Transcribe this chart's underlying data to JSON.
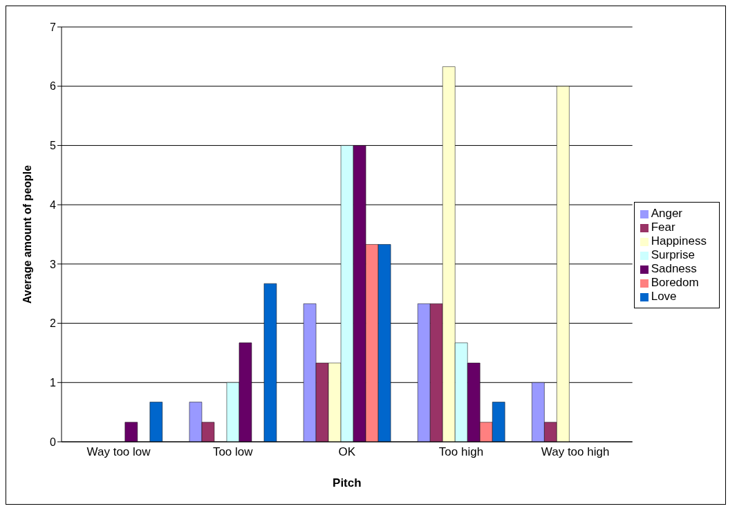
{
  "chart_data": {
    "type": "bar",
    "xlabel": "Pitch",
    "ylabel": "Average amount of people",
    "categories": [
      "Way too low",
      "Too low",
      "OK",
      "Too high",
      "Way too high"
    ],
    "series": [
      {
        "name": "Anger",
        "color": "#9999ff",
        "values": [
          0,
          0.67,
          2.33,
          2.33,
          1
        ]
      },
      {
        "name": "Fear",
        "color": "#993366",
        "values": [
          0,
          0.33,
          1.33,
          2.33,
          0.33
        ]
      },
      {
        "name": "Happiness",
        "color": "#ffffcc",
        "values": [
          0,
          0,
          1.33,
          6.33,
          6
        ]
      },
      {
        "name": "Surprise",
        "color": "#ccffff",
        "values": [
          0,
          1,
          5,
          1.67,
          0
        ]
      },
      {
        "name": "Sadness",
        "color": "#660066",
        "values": [
          0.33,
          1.67,
          5,
          1.33,
          0
        ]
      },
      {
        "name": "Boredom",
        "color": "#ff8080",
        "values": [
          0,
          0,
          3.33,
          0.33,
          0
        ]
      },
      {
        "name": "Love",
        "color": "#0066cc",
        "values": [
          0.67,
          2.67,
          3.33,
          0.67,
          0
        ]
      }
    ],
    "ylim": [
      0,
      7
    ],
    "yticks": [
      0,
      1,
      2,
      3,
      4,
      5,
      6,
      7
    ],
    "grid": "y",
    "legend": "right"
  }
}
